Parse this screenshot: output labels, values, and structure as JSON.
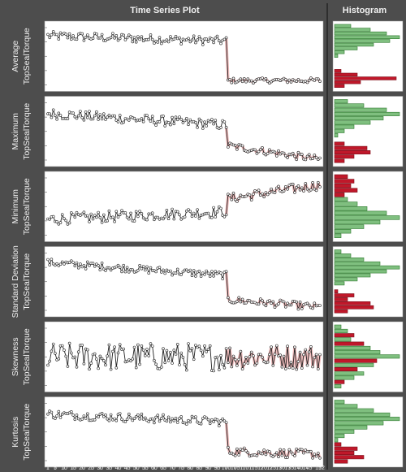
{
  "headers": {
    "ts_title": "Time Series Plot",
    "hist_title": "Histogram"
  },
  "colors": {
    "bg": "#4d4d4d",
    "panel": "#ffffff",
    "line": "#222222",
    "marker_fill": "#ffffff",
    "highlight": "#e8a0a0",
    "hist_green": "#7fbf7f",
    "hist_green_edge": "#2f7a2f",
    "hist_red": "#c0182a",
    "hist_red_edge": "#7a0f1a"
  },
  "x_ticks": [
    "1",
    "5",
    "10",
    "15",
    "20",
    "25",
    "30",
    "35",
    "40",
    "45",
    "50",
    "55",
    "60",
    "65",
    "70",
    "75",
    "80",
    "85",
    "90",
    "95",
    "100",
    "105",
    "110",
    "115",
    "120",
    "125",
    "130",
    "135",
    "140",
    "145",
    "152"
  ],
  "chart_data": [
    {
      "type": "line",
      "label_line1": "Average",
      "label_line2": "TopSealTorque",
      "x_range": [
        1,
        152
      ],
      "change_point": 100,
      "before": {
        "level": 0.82,
        "noise": 0.07,
        "trend": -0.08
      },
      "after": {
        "level": 0.12,
        "noise": 0.04,
        "trend": 0.0
      },
      "hist_bins": [
        {
          "v": 0.25,
          "g": "green"
        },
        {
          "v": 0.55,
          "g": "green"
        },
        {
          "v": 0.8,
          "g": "green"
        },
        {
          "v": 1.0,
          "g": "green"
        },
        {
          "v": 0.85,
          "g": "green"
        },
        {
          "v": 0.6,
          "g": "green"
        },
        {
          "v": 0.35,
          "g": "green"
        },
        {
          "v": 0.15,
          "g": "green"
        },
        {
          "v": 0.05,
          "g": "green"
        },
        {
          "v": 0.0,
          "g": "green"
        },
        {
          "v": 0.0,
          "g": "green"
        },
        {
          "v": 0.0,
          "g": "green"
        },
        {
          "v": 0.1,
          "g": "red"
        },
        {
          "v": 0.35,
          "g": "red"
        },
        {
          "v": 0.95,
          "g": "red"
        },
        {
          "v": 0.4,
          "g": "red"
        },
        {
          "v": 0.15,
          "g": "red"
        }
      ]
    },
    {
      "type": "line",
      "label_line1": "Maximum",
      "label_line2": "TopSealTorque",
      "x_range": [
        1,
        152
      ],
      "change_point": 100,
      "before": {
        "level": 0.78,
        "noise": 0.08,
        "trend": -0.18
      },
      "after": {
        "level": 0.28,
        "noise": 0.06,
        "trend": -0.22
      },
      "hist_bins": [
        {
          "v": 0.2,
          "g": "green"
        },
        {
          "v": 0.45,
          "g": "green"
        },
        {
          "v": 0.8,
          "g": "green"
        },
        {
          "v": 1.0,
          "g": "green"
        },
        {
          "v": 0.75,
          "g": "green"
        },
        {
          "v": 0.55,
          "g": "green"
        },
        {
          "v": 0.3,
          "g": "green"
        },
        {
          "v": 0.15,
          "g": "green"
        },
        {
          "v": 0.05,
          "g": "green"
        },
        {
          "v": 0.0,
          "g": "green"
        },
        {
          "v": 0.15,
          "g": "red"
        },
        {
          "v": 0.5,
          "g": "red"
        },
        {
          "v": 0.55,
          "g": "red"
        },
        {
          "v": 0.3,
          "g": "red"
        },
        {
          "v": 0.15,
          "g": "red"
        }
      ]
    },
    {
      "type": "line",
      "label_line1": "Minimum",
      "label_line2": "TopSealTorque",
      "x_range": [
        1,
        152
      ],
      "change_point": 100,
      "before": {
        "level": 0.3,
        "noise": 0.09,
        "trend": 0.12
      },
      "after": {
        "level": 0.62,
        "noise": 0.08,
        "trend": 0.22
      },
      "hist_bins": [
        {
          "v": 0.2,
          "g": "red"
        },
        {
          "v": 0.3,
          "g": "red"
        },
        {
          "v": 0.25,
          "g": "red"
        },
        {
          "v": 0.35,
          "g": "red"
        },
        {
          "v": 0.15,
          "g": "red"
        },
        {
          "v": 0.2,
          "g": "green"
        },
        {
          "v": 0.35,
          "g": "green"
        },
        {
          "v": 0.5,
          "g": "green"
        },
        {
          "v": 0.8,
          "g": "green"
        },
        {
          "v": 1.0,
          "g": "green"
        },
        {
          "v": 0.7,
          "g": "green"
        },
        {
          "v": 0.45,
          "g": "green"
        },
        {
          "v": 0.25,
          "g": "green"
        },
        {
          "v": 0.1,
          "g": "green"
        }
      ]
    },
    {
      "type": "line",
      "label_line1": "Standard Deviation",
      "label_line2": "TopSealTorque",
      "x_range": [
        1,
        152
      ],
      "change_point": 100,
      "before": {
        "level": 0.8,
        "noise": 0.06,
        "trend": -0.2
      },
      "after": {
        "level": 0.22,
        "noise": 0.06,
        "trend": -0.12
      },
      "hist_bins": [
        {
          "v": 0.1,
          "g": "green"
        },
        {
          "v": 0.25,
          "g": "green"
        },
        {
          "v": 0.45,
          "g": "green"
        },
        {
          "v": 0.7,
          "g": "green"
        },
        {
          "v": 1.0,
          "g": "green"
        },
        {
          "v": 0.8,
          "g": "green"
        },
        {
          "v": 0.55,
          "g": "green"
        },
        {
          "v": 0.35,
          "g": "green"
        },
        {
          "v": 0.15,
          "g": "green"
        },
        {
          "v": 0.0,
          "g": "green"
        },
        {
          "v": 0.05,
          "g": "red"
        },
        {
          "v": 0.3,
          "g": "red"
        },
        {
          "v": 0.2,
          "g": "red"
        },
        {
          "v": 0.55,
          "g": "red"
        },
        {
          "v": 0.6,
          "g": "red"
        },
        {
          "v": 0.2,
          "g": "red"
        }
      ]
    },
    {
      "type": "line",
      "label_line1": "Skewness",
      "label_line2": "TopSealTorque",
      "x_range": [
        1,
        152
      ],
      "change_point": 100,
      "before": {
        "level": 0.5,
        "noise": 0.22,
        "trend": 0.0
      },
      "after": {
        "level": 0.5,
        "noise": 0.2,
        "trend": 0.0
      },
      "hist_bins": [
        {
          "v": 0.1,
          "g": "green"
        },
        {
          "v": 0.2,
          "g": "green"
        },
        {
          "v": 0.3,
          "g": "red"
        },
        {
          "v": 0.25,
          "g": "green"
        },
        {
          "v": 0.45,
          "g": "red"
        },
        {
          "v": 0.55,
          "g": "green"
        },
        {
          "v": 0.7,
          "g": "green"
        },
        {
          "v": 1.0,
          "g": "green"
        },
        {
          "v": 0.65,
          "g": "red"
        },
        {
          "v": 0.6,
          "g": "green"
        },
        {
          "v": 0.35,
          "g": "red"
        },
        {
          "v": 0.45,
          "g": "green"
        },
        {
          "v": 0.3,
          "g": "green"
        },
        {
          "v": 0.15,
          "g": "red"
        },
        {
          "v": 0.1,
          "g": "green"
        }
      ]
    },
    {
      "type": "line",
      "label_line1": "Kurtosis",
      "label_line2": "TopSealTorque",
      "x_range": [
        1,
        152
      ],
      "change_point": 100,
      "before": {
        "level": 0.78,
        "noise": 0.07,
        "trend": -0.12
      },
      "after": {
        "level": 0.2,
        "noise": 0.07,
        "trend": -0.05
      },
      "hist_bins": [
        {
          "v": 0.15,
          "g": "green"
        },
        {
          "v": 0.35,
          "g": "green"
        },
        {
          "v": 0.6,
          "g": "green"
        },
        {
          "v": 0.85,
          "g": "green"
        },
        {
          "v": 1.0,
          "g": "green"
        },
        {
          "v": 0.75,
          "g": "green"
        },
        {
          "v": 0.5,
          "g": "green"
        },
        {
          "v": 0.3,
          "g": "green"
        },
        {
          "v": 0.15,
          "g": "green"
        },
        {
          "v": 0.05,
          "g": "green"
        },
        {
          "v": 0.1,
          "g": "red"
        },
        {
          "v": 0.35,
          "g": "red"
        },
        {
          "v": 0.3,
          "g": "red"
        },
        {
          "v": 0.45,
          "g": "red"
        },
        {
          "v": 0.2,
          "g": "red"
        }
      ]
    }
  ]
}
